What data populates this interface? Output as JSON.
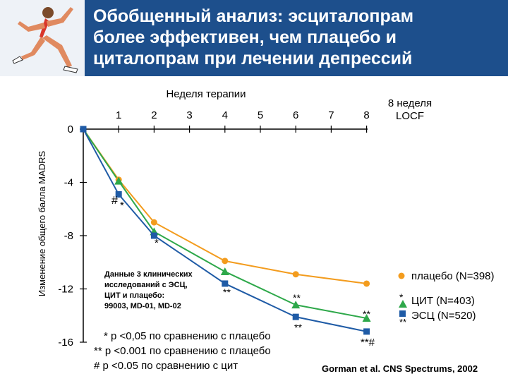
{
  "header": {
    "title_lines": [
      "Обобщенный анализ: эсциталопрам",
      "более эффективен, чем плацебо и",
      "циталопрам при лечении депрессий"
    ]
  },
  "colors": {
    "header_bg": "#1d4f8c",
    "placebo": "#f39c1e",
    "citalopram": "#2ea84a",
    "escitalopram": "#1f5ba6"
  },
  "chart_data": {
    "type": "line",
    "xlabel": "Неделя терапии",
    "ylabel": "Изменение общего балла MADRS",
    "x_ticks": [
      "1",
      "2",
      "3",
      "4",
      "5",
      "6",
      "7",
      "8"
    ],
    "extra_x_label_lines": [
      "8 неделя",
      "LOCF"
    ],
    "y_ticks": [
      "0",
      "-4",
      "-8",
      "-12",
      "-16"
    ],
    "ylim": [
      -16,
      0
    ],
    "series": [
      {
        "name": "плацебо (N=398)",
        "color": "#f39c1e",
        "marker": "circle",
        "points": [
          [
            0,
            0
          ],
          [
            1,
            -3.8
          ],
          [
            2,
            -7.0
          ],
          [
            4,
            -9.9
          ],
          [
            6,
            -10.9
          ],
          [
            8,
            -11.6
          ]
        ]
      },
      {
        "name": "ЦИТ (N=403)",
        "color": "#2ea84a",
        "marker": "triangle",
        "points": [
          [
            0,
            0
          ],
          [
            1,
            -3.9
          ],
          [
            2,
            -7.7
          ],
          [
            4,
            -10.7
          ],
          [
            6,
            -13.2
          ],
          [
            8,
            -14.2
          ]
        ]
      },
      {
        "name": "ЭСЦ (N=520)",
        "color": "#1f5ba6",
        "marker": "square",
        "points": [
          [
            0,
            0
          ],
          [
            1,
            -4.9
          ],
          [
            2,
            -8.0
          ],
          [
            4,
            -11.6
          ],
          [
            6,
            -14.1
          ],
          [
            8,
            -15.2
          ]
        ]
      }
    ],
    "annotations": {
      "week1": "#",
      "week1_b": "*",
      "week2": "*",
      "week4": "**",
      "week6_top": "**",
      "week6_bottom": "**",
      "week8_top": "**",
      "locf": "**#",
      "legend_star_single": "*",
      "legend_star_double": "**"
    },
    "inset_note": [
      "Данные 3 клинических",
      "исследований с ЭСЦ,",
      "ЦИТ и плацебо:",
      "99003, MD-01, MD-02"
    ],
    "footnotes": [
      "* p <0,05 по сравнению с плацебо",
      "** p <0.001 по сравнению с плацебо",
      "# p <0.05 по сравнению с цит"
    ],
    "citation": "Gorman et al. CNS Spectrums, 2002"
  }
}
